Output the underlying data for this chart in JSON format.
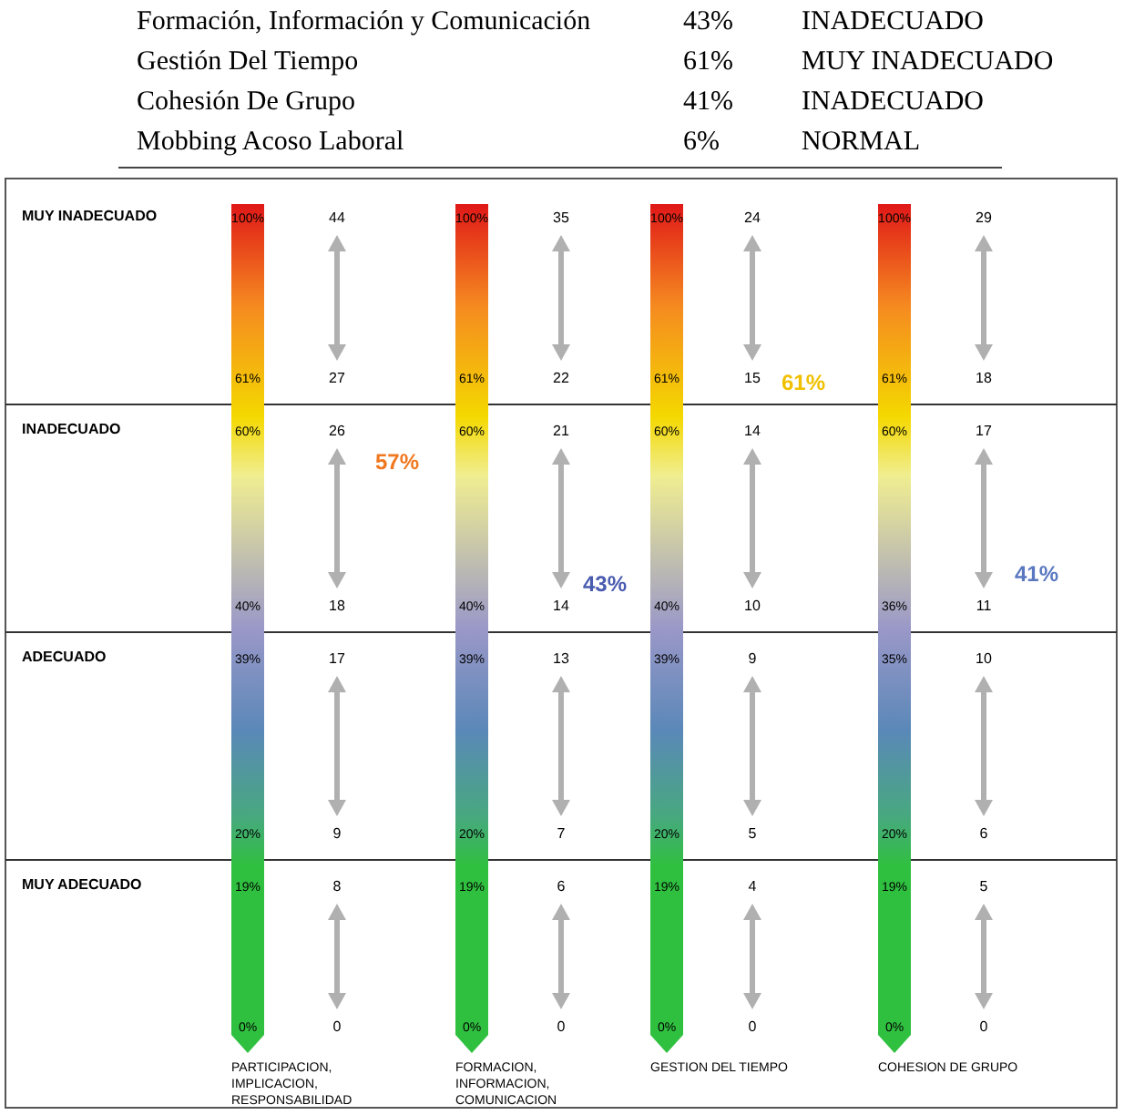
{
  "chart_data": [
    {
      "type": "other",
      "annotations": [
        "Formación, Información y Comunicación",
        "43%",
        "INADECUADO",
        "Gestión Del Tiempo",
        "61%",
        "MUY INADECUADO",
        "Cohesión De Grupo",
        "41%",
        "INADECUADO",
        "Mobbing Acoso Laboral",
        "6%",
        "NORMAL"
      ]
    },
    {
      "type": "other",
      "categories": [
        "PARTICIPACION,\nIMPLICACION,\nRESPONSABILIDAD",
        "FORMACION,\nINFORMACION,\nCOMUNICACION",
        "GESTION DEL TIEMPO",
        "COHESION DE GRUPO"
      ],
      "y_categories": [
        "MUY INADECUADO",
        "INADECUADO",
        "ADECUADO",
        "MUY ADECUADO"
      ],
      "values": [
        57,
        43,
        61,
        41
      ],
      "value_labels": [
        "57%",
        "43%",
        "61%",
        "41%"
      ],
      "colors": [
        "#f07820",
        "#4a5cb0",
        "#f0c000",
        "#5a78c0"
      ],
      "annotations": [
        "100%",
        "61%",
        "44",
        "27",
        "60%",
        "40%",
        "26",
        "18",
        "39%",
        "20%",
        "17",
        "9",
        "19%",
        "0%",
        "8",
        "0",
        "100%",
        "61%",
        "35",
        "22",
        "60%",
        "40%",
        "21",
        "14",
        "39%",
        "20%",
        "13",
        "7",
        "19%",
        "0%",
        "6",
        "0",
        "100%",
        "61%",
        "24",
        "15",
        "60%",
        "40%",
        "14",
        "10",
        "39%",
        "20%",
        "9",
        "5",
        "19%",
        "0%",
        "4",
        "0",
        "100%",
        "61%",
        "29",
        "18",
        "60%",
        "36%",
        "17",
        "11",
        "35%",
        "20%",
        "10",
        "6",
        "19%",
        "0%",
        "5",
        "0"
      ]
    }
  ]
}
